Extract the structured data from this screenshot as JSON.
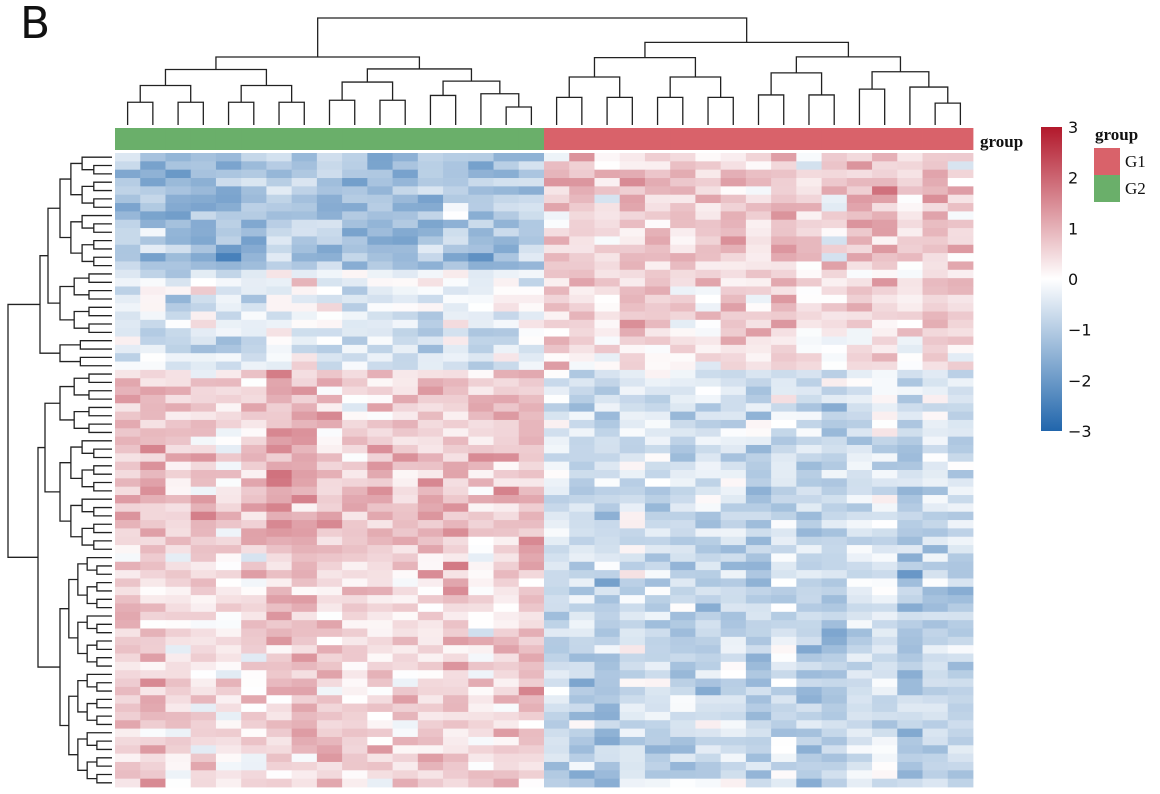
{
  "panel_label": "B",
  "chart_data": {
    "type": "heatmap",
    "title": "",
    "n_rows": 76,
    "n_cols": 34,
    "column_groups": [
      "G2",
      "G2",
      "G2",
      "G2",
      "G2",
      "G2",
      "G2",
      "G2",
      "G2",
      "G2",
      "G2",
      "G2",
      "G2",
      "G2",
      "G2",
      "G2",
      "G2",
      "G1",
      "G1",
      "G1",
      "G1",
      "G1",
      "G1",
      "G1",
      "G1",
      "G1",
      "G1",
      "G1",
      "G1",
      "G1",
      "G1",
      "G1",
      "G1",
      "G1"
    ],
    "row_clusters": [
      {
        "rows": 14,
        "g2_mean": -1.2,
        "g1_mean": 0.6
      },
      {
        "rows": 8,
        "g2_mean": -0.3,
        "g1_mean": 0.5
      },
      {
        "rows": 4,
        "g2_mean": -0.5,
        "g1_mean": 0.4
      },
      {
        "rows": 8,
        "g2_mean": 0.6,
        "g1_mean": -0.6
      },
      {
        "rows": 14,
        "g2_mean": 0.8,
        "g1_mean": -0.7
      },
      {
        "rows": 28,
        "g2_mean": 0.5,
        "g1_mean": -0.8
      }
    ],
    "color_scale": {
      "min": -3,
      "max": 3,
      "low": "#2166ac",
      "mid": "#ffffff",
      "high": "#b2182b"
    },
    "colorbar_ticks": [
      "3",
      "2",
      "1",
      "0",
      "−1",
      "−2",
      "−3"
    ],
    "annotation_label": "group",
    "legend": {
      "title": "group",
      "entries": [
        {
          "label": "G1",
          "color": "#d9626a"
        },
        {
          "label": "G2",
          "color": "#6aaf6a"
        }
      ]
    },
    "legend_placement": "right",
    "column_dendrogram": true,
    "row_dendrogram": true
  }
}
